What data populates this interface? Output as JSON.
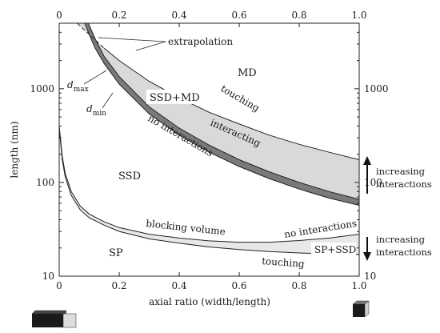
{
  "chart_data": {
    "type": "area",
    "xlabel": "axial ratio (width/length)",
    "ylabel": "length (nm)",
    "x_ticks": [
      "0",
      "0.2",
      "0.4",
      "0.6",
      "0.8",
      "1.0"
    ],
    "x_top_ticks": [
      "0",
      "0.2",
      "0.4",
      "0.6",
      "0.8",
      "1.0"
    ],
    "y_ticks": [
      "10",
      "100",
      "1000"
    ],
    "y_right_ticks": [
      "10",
      "100",
      "1000"
    ],
    "xlim": [
      0,
      1
    ],
    "ylim": [
      10,
      5000
    ],
    "yscale": "log",
    "grid": false,
    "series": [
      {
        "name": "touching",
        "band": "upper",
        "x": [
          0.06,
          0.1,
          0.15,
          0.2,
          0.3,
          0.4,
          0.5,
          0.6,
          0.7,
          0.8,
          0.9,
          1.0
        ],
        "y": [
          5000,
          3800,
          2700,
          2000,
          1200,
          800,
          560,
          420,
          320,
          255,
          210,
          175
        ]
      },
      {
        "name": "d_max",
        "band": "upper",
        "x": [
          0.097,
          0.12,
          0.15,
          0.2,
          0.3,
          0.4,
          0.5,
          0.6,
          0.7,
          0.8,
          0.9,
          1.0
        ],
        "y": [
          5000,
          3400,
          2200,
          1350,
          640,
          380,
          250,
          175,
          130,
          100,
          80,
          66
        ]
      },
      {
        "name": "d_min",
        "band": "upper",
        "x": [
          0.085,
          0.1,
          0.12,
          0.15,
          0.2,
          0.3,
          0.4,
          0.5,
          0.6,
          0.7,
          0.8,
          0.9,
          1.0
        ],
        "y": [
          5000,
          3800,
          2700,
          1850,
          1120,
          540,
          320,
          210,
          148,
          110,
          85,
          68,
          57
        ]
      },
      {
        "name": "blocking volume",
        "band": "lower",
        "x": [
          0.0,
          0.01,
          0.02,
          0.04,
          0.07,
          0.1,
          0.15,
          0.2,
          0.3,
          0.4,
          0.5,
          0.6,
          0.7,
          0.8,
          0.9,
          1.0
        ],
        "y": [
          400,
          190,
          125,
          80,
          56,
          46,
          38,
          33,
          28,
          25.5,
          23.8,
          23.0,
          23.0,
          24.0,
          25.5,
          28
        ]
      },
      {
        "name": "touching",
        "band": "lower",
        "x": [
          0.0,
          0.01,
          0.02,
          0.04,
          0.07,
          0.1,
          0.15,
          0.2,
          0.3,
          0.4,
          0.5,
          0.6,
          0.7,
          0.8,
          0.9,
          1.0
        ],
        "y": [
          380,
          175,
          115,
          73,
          51,
          42,
          35,
          30,
          25,
          22.5,
          20.5,
          19.2,
          18.3,
          17.7,
          17.3,
          17.0
        ]
      }
    ],
    "annotations": {
      "extrapolation": "extrapolation",
      "md": "MD",
      "ssd_md": "SSD+MD",
      "touching_upper": "touching",
      "interacting": "interacting",
      "no_interactions_upper": "no interactions",
      "ssd": "SSD",
      "blocking_volume": "blocking volume",
      "no_interactions_lower": "no interactions",
      "sp": "SP",
      "sp_ssd": "SP+SSD",
      "touching_lower": "touching",
      "d_max": "d",
      "d_max_sub": "max",
      "d_min": "d",
      "d_min_sub": "min",
      "increasing_upper_1": "increasing",
      "increasing_upper_2": "interactions",
      "increasing_lower_1": "increasing",
      "increasing_lower_2": "interactions"
    },
    "colors": {
      "upper_band_fill": "#d9d9d9",
      "dark_band_fill": "#7a7a7a",
      "lower_band_fill": "#e8e8e8",
      "line": "#222222"
    }
  }
}
